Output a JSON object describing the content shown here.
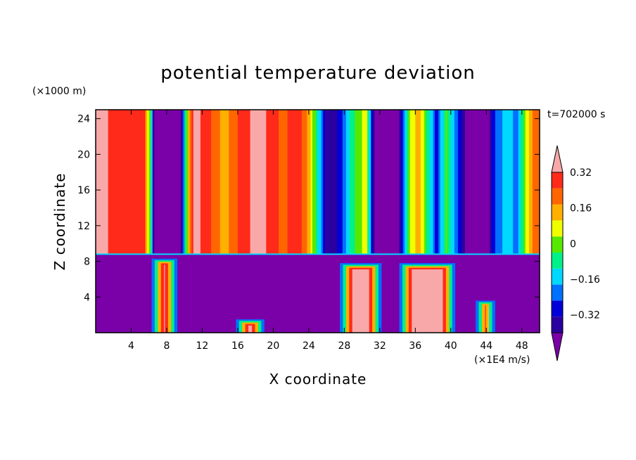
{
  "chart_data": {
    "type": "heatmap",
    "title": "potential temperature deviation",
    "xlabel": "X coordinate",
    "ylabel": "Z coordinate",
    "x_unit": "(×1E4 m/s)",
    "y_unit": "(×1000 m)",
    "time_label": "t=702000 s",
    "xlim": [
      0,
      50
    ],
    "ylim": [
      0,
      25
    ],
    "x_ticks": [
      4,
      8,
      12,
      16,
      20,
      24,
      28,
      32,
      36,
      40,
      44,
      48
    ],
    "y_ticks": [
      4,
      8,
      12,
      16,
      20,
      24
    ],
    "interface_z": 8.8,
    "colorbar": {
      "levels": [
        -0.48,
        -0.4,
        -0.32,
        -0.24,
        -0.16,
        -0.08,
        0,
        0.08,
        0.16,
        0.24,
        0.32,
        0.4
      ],
      "colors": [
        "#7a00a8",
        "#2a00a0",
        "#0000d8",
        "#0070ff",
        "#00d8ff",
        "#00f08a",
        "#58e800",
        "#f0ff00",
        "#ffb000",
        "#ff6600",
        "#ff2a1a",
        "#f8a8a8"
      ],
      "tick_labels": [
        "0.32",
        "0.16",
        "0",
        "−0.16",
        "−0.32"
      ],
      "tick_values": [
        0.32,
        0.16,
        0,
        -0.16,
        -0.32
      ]
    },
    "upper_layer_profile": [
      {
        "x": 0,
        "v": 0.44
      },
      {
        "x": 3,
        "v": 0.35
      },
      {
        "x": 5.5,
        "v": 0.35
      },
      {
        "x": 6.2,
        "v": -0.05
      },
      {
        "x": 6.6,
        "v": -0.48
      },
      {
        "x": 9.6,
        "v": -0.48
      },
      {
        "x": 10.2,
        "v": 0.0
      },
      {
        "x": 11,
        "v": 0.44
      },
      {
        "x": 12.5,
        "v": 0.36
      },
      {
        "x": 14.5,
        "v": 0.2
      },
      {
        "x": 16.5,
        "v": 0.36
      },
      {
        "x": 18.5,
        "v": 0.44
      },
      {
        "x": 21,
        "v": 0.3
      },
      {
        "x": 23,
        "v": 0.36
      },
      {
        "x": 24,
        "v": 0.2
      },
      {
        "x": 25,
        "v": -0.05
      },
      {
        "x": 26,
        "v": -0.4
      },
      {
        "x": 27.5,
        "v": -0.3
      },
      {
        "x": 28.5,
        "v": -0.1
      },
      {
        "x": 29.5,
        "v": 0.05
      },
      {
        "x": 30.5,
        "v": 0.1
      },
      {
        "x": 31.5,
        "v": -0.48
      },
      {
        "x": 34,
        "v": -0.48
      },
      {
        "x": 35.5,
        "v": 0.1
      },
      {
        "x": 36.5,
        "v": 0.2
      },
      {
        "x": 37.5,
        "v": -0.05
      },
      {
        "x": 38.5,
        "v": -0.3
      },
      {
        "x": 39.5,
        "v": 0.05
      },
      {
        "x": 40.5,
        "v": -0.2
      },
      {
        "x": 42,
        "v": -0.48
      },
      {
        "x": 44,
        "v": -0.48
      },
      {
        "x": 45,
        "v": -0.25
      },
      {
        "x": 46.5,
        "v": -0.1
      },
      {
        "x": 47.5,
        "v": -0.2
      },
      {
        "x": 48.5,
        "v": 0.1
      },
      {
        "x": 49.5,
        "v": 0.28
      },
      {
        "x": 50,
        "v": 0.32
      }
    ],
    "lower_layer_warm_plumes": [
      {
        "x0": 6.3,
        "x1": 9.2,
        "z_top": 8.3
      },
      {
        "x0": 15.8,
        "x1": 19.0,
        "z_top": 1.5
      },
      {
        "x0": 27.5,
        "x1": 32.2,
        "z_top": 7.8
      },
      {
        "x0": 34.2,
        "x1": 40.5,
        "z_top": 7.8
      },
      {
        "x0": 42.8,
        "x1": 45.0,
        "z_top": 3.6
      }
    ]
  }
}
